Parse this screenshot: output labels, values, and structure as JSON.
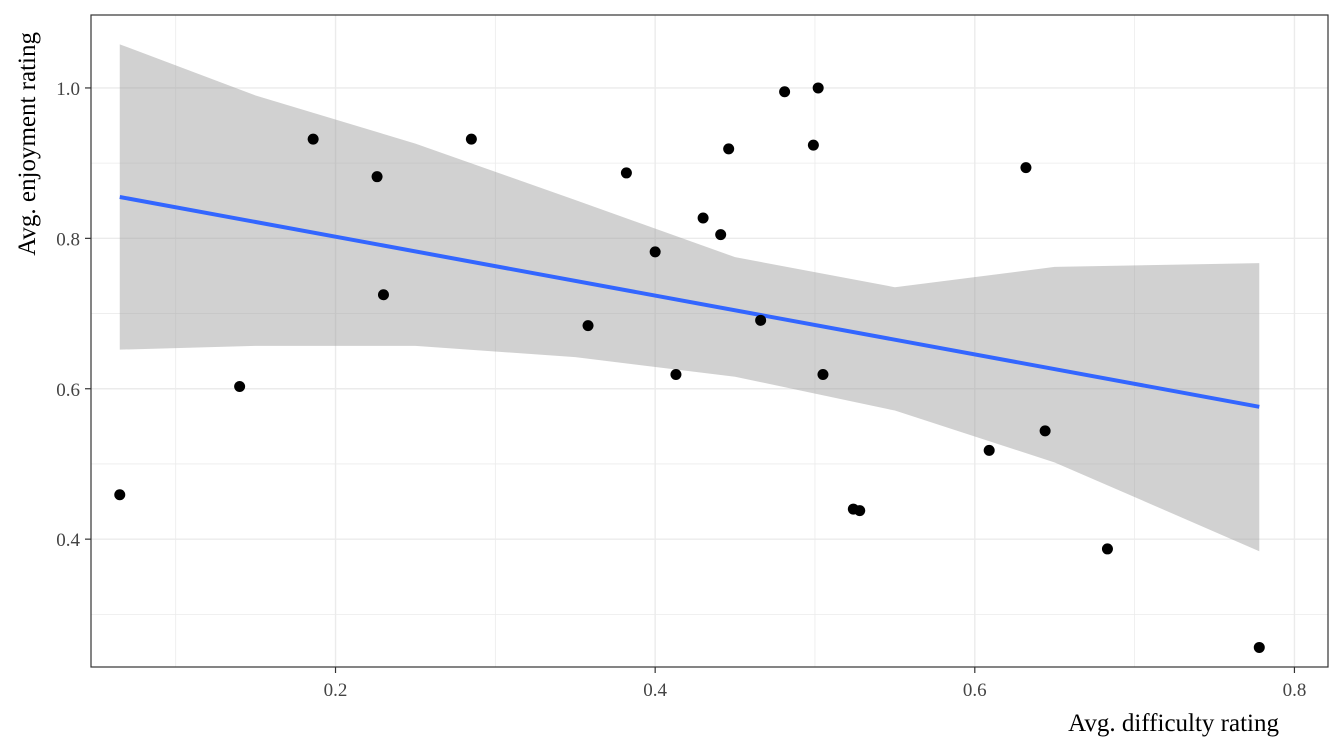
{
  "chart_data": {
    "type": "scatter",
    "title": "",
    "xlabel": "Avg. difficulty rating",
    "ylabel": "Avg. enjoyment rating",
    "xlim": [
      0.047,
      0.821
    ],
    "ylim": [
      0.23,
      1.097
    ],
    "x_ticks": [
      0.2,
      0.4,
      0.6,
      0.8
    ],
    "x_tick_labels": [
      "0.2",
      "0.4",
      "0.6",
      "0.8"
    ],
    "y_ticks": [
      0.4,
      0.6,
      0.8,
      1.0
    ],
    "y_tick_labels": [
      "0.4",
      "0.6",
      "0.8",
      "1.0"
    ],
    "grid": true,
    "legend": "none",
    "colors": {
      "points": "#000000",
      "fit_line": "#3366FF",
      "confidence_band": "#999999",
      "grid": "#EBEBEB",
      "panel_border": "#333333"
    },
    "points": [
      {
        "x": 0.065,
        "y": 0.459
      },
      {
        "x": 0.14,
        "y": 0.603
      },
      {
        "x": 0.186,
        "y": 0.932
      },
      {
        "x": 0.226,
        "y": 0.882
      },
      {
        "x": 0.23,
        "y": 0.725
      },
      {
        "x": 0.285,
        "y": 0.932
      },
      {
        "x": 0.358,
        "y": 0.684
      },
      {
        "x": 0.382,
        "y": 0.887
      },
      {
        "x": 0.4,
        "y": 0.782
      },
      {
        "x": 0.413,
        "y": 0.619
      },
      {
        "x": 0.43,
        "y": 0.827
      },
      {
        "x": 0.441,
        "y": 0.805
      },
      {
        "x": 0.446,
        "y": 0.919
      },
      {
        "x": 0.466,
        "y": 0.691
      },
      {
        "x": 0.481,
        "y": 0.995
      },
      {
        "x": 0.499,
        "y": 0.924
      },
      {
        "x": 0.502,
        "y": 1.0
      },
      {
        "x": 0.505,
        "y": 0.619
      },
      {
        "x": 0.524,
        "y": 0.44
      },
      {
        "x": 0.528,
        "y": 0.438
      },
      {
        "x": 0.609,
        "y": 0.518
      },
      {
        "x": 0.632,
        "y": 0.894
      },
      {
        "x": 0.644,
        "y": 0.544
      },
      {
        "x": 0.683,
        "y": 0.387
      },
      {
        "x": 0.778,
        "y": 0.256
      }
    ],
    "fit_line": {
      "method": "linear",
      "x": [
        0.065,
        0.778
      ],
      "y": [
        0.855,
        0.576
      ]
    },
    "confidence_band": {
      "x": [
        0.065,
        0.15,
        0.25,
        0.35,
        0.45,
        0.55,
        0.65,
        0.778
      ],
      "lower": [
        0.652,
        0.657,
        0.657,
        0.642,
        0.616,
        0.571,
        0.502,
        0.384
      ],
      "upper": [
        1.058,
        0.99,
        0.926,
        0.851,
        0.775,
        0.735,
        0.762,
        0.767
      ]
    }
  }
}
